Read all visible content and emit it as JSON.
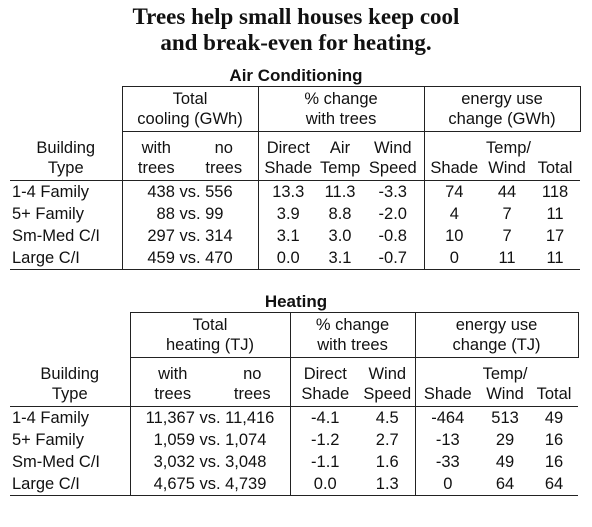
{
  "title": [
    "Trees help small houses keep cool",
    "and break-even for heating."
  ],
  "tables": [
    {
      "caption": "Air Conditioning",
      "widths": [
        112,
        68,
        68,
        60,
        44,
        62,
        60,
        46,
        50
      ],
      "groups": [
        [
          1,
          2
        ],
        [
          3,
          3
        ],
        [
          6,
          3
        ]
      ],
      "group_headers": [
        [
          "Total",
          "cooling (GWh)"
        ],
        [
          "% change",
          "with trees"
        ],
        [
          "energy use",
          "change (GWh)"
        ]
      ],
      "column_headers": [
        [
          "Building",
          "Type"
        ],
        [
          "with",
          "trees"
        ],
        [
          "no",
          "trees"
        ],
        [
          "Direct",
          "Shade"
        ],
        [
          "Air",
          "Temp"
        ],
        [
          "Wind",
          "Speed"
        ],
        [
          "Shade"
        ],
        [
          "Temp/",
          "Wind"
        ],
        [
          "Total"
        ]
      ],
      "rows": [
        [
          "1-4 Family",
          "438 vs. 556",
          "13.3",
          "11.3",
          "-3.3",
          "74",
          "44",
          "118"
        ],
        [
          "5+ Family",
          "88 vs. 99",
          "3.9",
          "8.8",
          "-2.0",
          "4",
          "7",
          "11"
        ],
        [
          "Sm-Med C/I",
          "297 vs. 314",
          "3.1",
          "3.0",
          "-0.8",
          "10",
          "7",
          "17"
        ],
        [
          "Large C/I",
          "459 vs. 470",
          "0.0",
          "3.1",
          "-0.7",
          "0",
          "11",
          "11"
        ]
      ]
    },
    {
      "caption": "Heating",
      "widths": [
        120,
        85,
        75,
        70,
        55,
        65,
        50,
        48
      ],
      "groups": [
        [
          1,
          2
        ],
        [
          3,
          2
        ],
        [
          5,
          3
        ]
      ],
      "group_headers": [
        [
          "Total",
          "heating (TJ)"
        ],
        [
          "% change",
          "with trees"
        ],
        [
          "energy use",
          "change (TJ)"
        ]
      ],
      "column_headers": [
        [
          "Building",
          "Type"
        ],
        [
          "with",
          "trees"
        ],
        [
          "no",
          "trees"
        ],
        [
          "Direct",
          "Shade"
        ],
        [
          "Wind",
          "Speed"
        ],
        [
          "Shade"
        ],
        [
          "Temp/",
          "Wind"
        ],
        [
          "Total"
        ]
      ],
      "rows": [
        [
          "1-4 Family",
          "11,367 vs. 11,416",
          "-4.1",
          "4.5",
          "-464",
          "513",
          "49"
        ],
        [
          "5+ Family",
          "1,059 vs. 1,074",
          "-1.2",
          "2.7",
          "-13",
          "29",
          "16"
        ],
        [
          "Sm-Med C/I",
          "3,032 vs. 3,048",
          "-1.1",
          "1.6",
          "-33",
          "49",
          "16"
        ],
        [
          "Large C/I",
          "4,675 vs. 4,739",
          "0.0",
          "1.3",
          "0",
          "64",
          "64"
        ]
      ]
    }
  ]
}
